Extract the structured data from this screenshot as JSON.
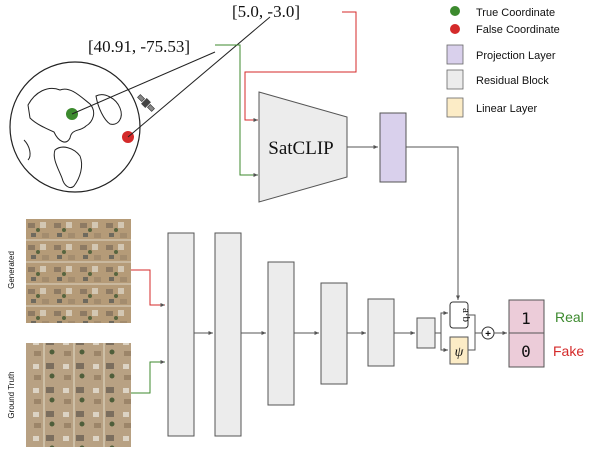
{
  "coordinates": {
    "true_coordinate": "[40.91, -75.53]",
    "false_coordinate": "[5.0, -3.0]"
  },
  "legend": {
    "true_coordinate": "True Coordinate",
    "false_coordinate": "False Coordinate",
    "projection_layer": "Projection Layer",
    "residual_block": "Residual Block",
    "linear_layer": "Linear Layer"
  },
  "model": {
    "satclip": "SatCLIP",
    "dot_product": "a·b",
    "psi": "ψ",
    "plus": "+"
  },
  "images": {
    "generated_label": "Generated",
    "ground_truth_label": "Ground Truth"
  },
  "outputs": {
    "real_value": "1",
    "fake_value": "0",
    "real_label": "Real",
    "fake_label": "Fake"
  },
  "colors": {
    "green": "#3c8a2e",
    "red": "#d42a2a",
    "projection": "#d9d0ec",
    "residual": "#ececec",
    "linear": "#fcecc6",
    "output": "#ecccd9"
  },
  "icons": {
    "globe": "globe-icon",
    "satellite": "satellite-icon"
  }
}
